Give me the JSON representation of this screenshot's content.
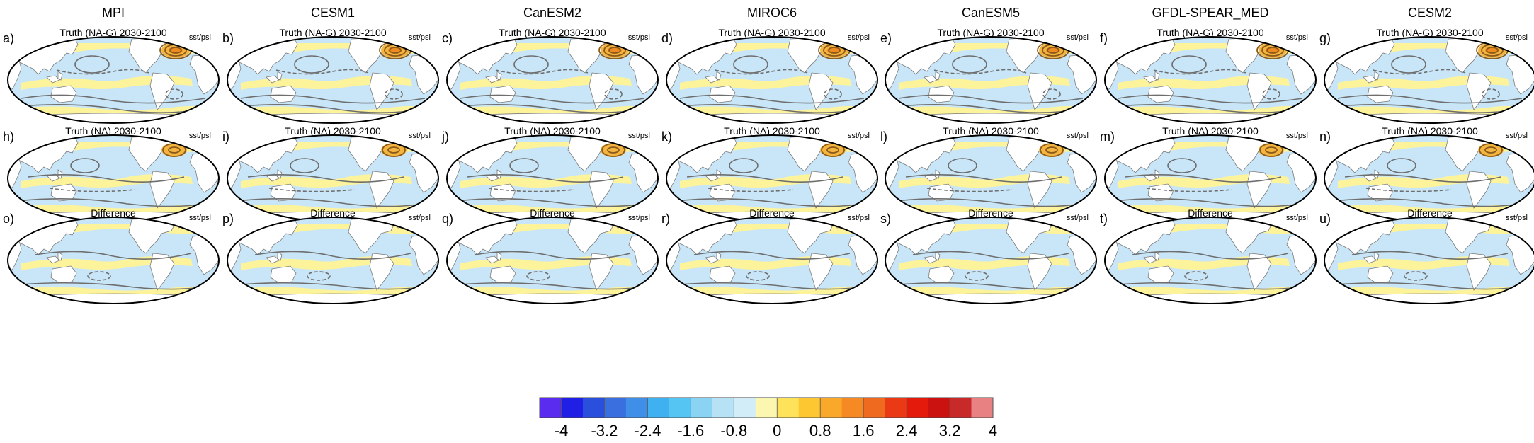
{
  "figure": {
    "models": [
      "MPI",
      "CESM1",
      "CanESM2",
      "MIROC6",
      "CanESM5",
      "GFDL-SPEAR_MED",
      "CESM2"
    ],
    "row_titles": [
      "Truth (NA-G) 2030-2100",
      "Truth (NA) 2030-2100",
      "Difference"
    ],
    "panel_letters": [
      [
        "a)",
        "b)",
        "c)",
        "d)",
        "e)",
        "f)",
        "g)"
      ],
      [
        "h)",
        "i)",
        "j)",
        "k)",
        "l)",
        "m)",
        "n)"
      ],
      [
        "o)",
        "p)",
        "q)",
        "r)",
        "s)",
        "t)",
        "u)"
      ]
    ],
    "variable_label": "sst/psl"
  },
  "colorbar": {
    "colors": [
      "#5a2cf0",
      "#1f1fe6",
      "#2b4fdd",
      "#3a6fe0",
      "#3f8fe8",
      "#3fb0f0",
      "#55c6f3",
      "#8ad3f3",
      "#b7e2f5",
      "#d2ecf8",
      "#fcf7b0",
      "#fde25a",
      "#fcc731",
      "#f9a829",
      "#f58a24",
      "#ef6a1f",
      "#ea3a15",
      "#e41a0c",
      "#cc1210",
      "#c82a2a",
      "#e88282"
    ],
    "tick_labels": [
      "-4",
      "-3.2",
      "-2.4",
      "-1.6",
      "-0.8",
      "0",
      "0.8",
      "1.6",
      "2.4",
      "3.2",
      "4"
    ]
  },
  "colors": {
    "ocean": "#c8e6f8",
    "land": "#ffffff",
    "warm": "#fdf39a",
    "contour": "#6e6e6e"
  }
}
